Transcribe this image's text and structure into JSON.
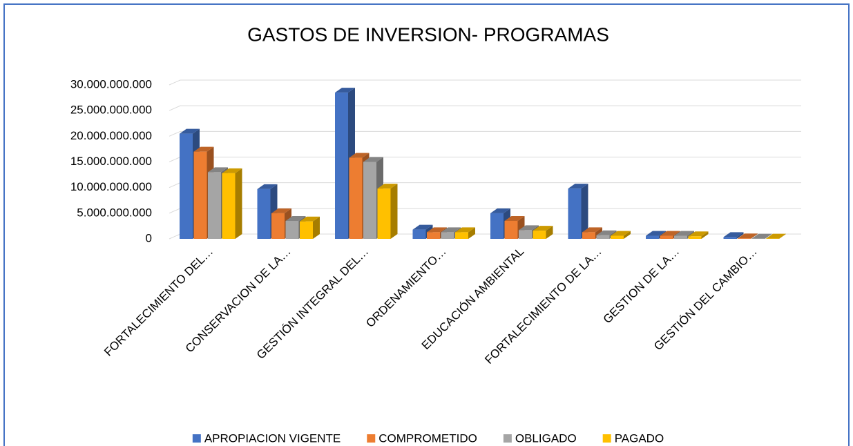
{
  "chart_data": {
    "type": "bar3d",
    "title": "GASTOS DE INVERSION- PROGRAMAS",
    "categories": [
      "FORTALECIMIENTO DEL…",
      "CONSERVACION DE LA…",
      "GESTIÓN INTEGRAL DEL…",
      "ORDENAMIENTO…",
      "EDUCACIÓN AMBIENTAL",
      "FORTALECIMIENTO DE LA…",
      "GESTION DE LA…",
      "GESTIÓN DEL CAMBIO…"
    ],
    "series": [
      {
        "name": "APROPIACION VIGENTE",
        "color": "#4472c4",
        "values": [
          20500000000,
          9700000000,
          28500000000,
          1800000000,
          5000000000,
          9800000000,
          600000000,
          350000000
        ]
      },
      {
        "name": "COMPROMETIDO",
        "color": "#ed7d31",
        "values": [
          17000000000,
          5000000000,
          15800000000,
          1300000000,
          3500000000,
          1300000000,
          600000000,
          100000000
        ]
      },
      {
        "name": "OBLIGADO",
        "color": "#a5a5a5",
        "values": [
          13000000000,
          3500000000,
          15000000000,
          1300000000,
          1700000000,
          700000000,
          600000000,
          50000000
        ]
      },
      {
        "name": "PAGADO",
        "color": "#ffc000",
        "values": [
          12800000000,
          3400000000,
          9800000000,
          1300000000,
          1600000000,
          600000000,
          500000000,
          50000000
        ]
      }
    ],
    "ylim": [
      0,
      30000000000
    ],
    "yticks": [
      0,
      {
        "value": 5000000000,
        "label": "5.000.000.000"
      },
      {
        "value": 10000000000,
        "label": "10.000.000.000"
      },
      {
        "value": 15000000000,
        "label": "15.000.000.000"
      },
      {
        "value": 20000000000,
        "label": "20.000.000.000"
      },
      {
        "value": 25000000000,
        "label": "25.000.000.000"
      },
      {
        "value": 30000000000,
        "label": "30.000.000.000"
      }
    ],
    "grid": true,
    "legend": "bottom"
  }
}
